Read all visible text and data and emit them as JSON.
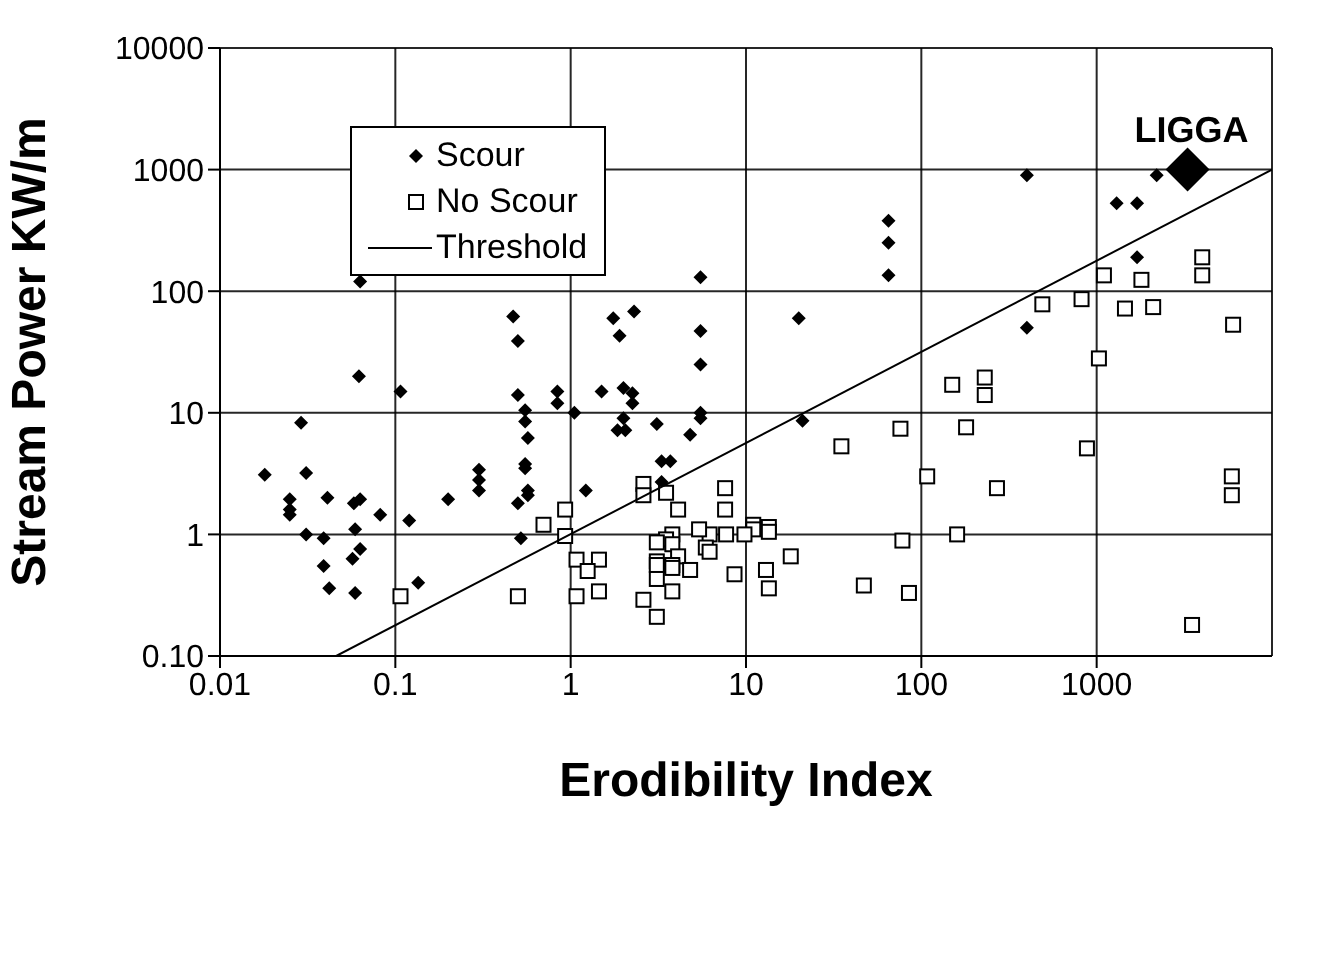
{
  "chart_data": {
    "type": "scatter",
    "xlabel": "Erodibility Index",
    "ylabel": "Stream Power KW/m",
    "log": "xy",
    "grid": true,
    "legend": "top left",
    "xlim": [
      0.01,
      10000
    ],
    "xticks": [
      0.01,
      0.1,
      1,
      10,
      100,
      1000
    ],
    "ylim": [
      0.1,
      10000
    ],
    "yticks": [
      {
        "value": 0.1,
        "label": "0.10"
      },
      1,
      10,
      100,
      1000,
      10000
    ],
    "annotations": [
      {
        "text": "LIGGA",
        "x": 3300,
        "y": 1000
      }
    ],
    "series": [
      {
        "name": "Scour",
        "marker": "diamond",
        "color": "#000000",
        "x": [
          0.063,
          0.47,
          0.5,
          1.75,
          2.3,
          1.9,
          400,
          2200,
          1300,
          1700,
          65,
          65,
          65,
          5.5,
          1700,
          400,
          20,
          5.5,
          0.062,
          0.107,
          0.029,
          0.018,
          0.031,
          0.025,
          0.025,
          0.025,
          0.041,
          0.031,
          0.039,
          0.058,
          0.063,
          0.059,
          0.063,
          0.057,
          0.039,
          0.042,
          0.059,
          0.082,
          0.12,
          0.135,
          0.2,
          0.3,
          0.3,
          0.3,
          0.5,
          0.55,
          0.55,
          0.57,
          0.55,
          0.55,
          0.57,
          0.57,
          0.5,
          0.52,
          0.84,
          0.84,
          1.05,
          1.22,
          1.5,
          2.0,
          2.25,
          2.25,
          2.0,
          1.85,
          2.05,
          3.1,
          4.8,
          5.5,
          5.5,
          5.5,
          3.3,
          3.7,
          3.3,
          21
        ],
        "values": [
          120,
          62,
          39,
          60,
          68,
          43,
          900,
          900,
          530,
          530,
          380,
          250,
          135,
          130,
          190,
          50,
          60,
          47,
          20,
          15,
          8.3,
          3.1,
          3.2,
          1.95,
          1.6,
          1.45,
          2.0,
          1.0,
          0.93,
          1.8,
          1.95,
          1.1,
          0.76,
          0.63,
          0.55,
          0.36,
          0.33,
          1.45,
          1.3,
          0.4,
          1.95,
          2.3,
          2.8,
          3.4,
          14,
          10.5,
          8.5,
          6.2,
          3.8,
          3.5,
          2.3,
          2.1,
          1.8,
          0.93,
          15,
          12,
          10,
          2.3,
          15,
          16,
          14.5,
          12,
          9,
          7.2,
          7.2,
          8.1,
          6.6,
          10,
          9,
          25,
          4,
          4,
          2.7,
          8.6
        ]
      },
      {
        "name": "No Scour",
        "marker": "square",
        "color": "#000000",
        "x": [
          1100,
          1800,
          4000,
          4000,
          490,
          820,
          1450,
          2100,
          6000,
          1030,
          150,
          230,
          230,
          76,
          180,
          880,
          35,
          108,
          270,
          5900,
          5900,
          160,
          78,
          47,
          85,
          3500,
          18,
          13,
          13.5,
          8.6,
          11,
          11,
          13.5,
          13.5,
          9.8,
          7.7,
          7.6,
          7.6,
          6.2,
          5.4,
          3.8,
          4.1,
          3.5,
          2.6,
          2.6,
          3.5,
          3.1,
          3.8,
          5.9,
          6.2,
          4.1,
          3.1,
          3.1,
          3.8,
          3.8,
          4.8,
          3.1,
          3.8,
          2.6,
          3.1,
          0.93,
          0.7,
          0.93,
          0.107,
          0.5,
          1.08,
          1.45,
          1.25,
          1.08,
          1.45
        ],
        "values": [
          135,
          124,
          190,
          135,
          78,
          86,
          72,
          74,
          53,
          28,
          17,
          19.5,
          14,
          7.4,
          7.6,
          5.1,
          5.3,
          3.0,
          2.4,
          3.0,
          2.1,
          1.0,
          0.89,
          0.38,
          0.33,
          0.18,
          0.66,
          0.51,
          0.36,
          0.47,
          1.2,
          1.1,
          1.15,
          1.05,
          1.0,
          1.0,
          2.4,
          1.6,
          1.0,
          1.1,
          1.0,
          1.6,
          2.2,
          2.6,
          2.1,
          0.91,
          0.86,
          0.83,
          0.78,
          0.72,
          0.66,
          0.6,
          0.56,
          0.56,
          0.53,
          0.51,
          0.43,
          0.34,
          0.29,
          0.21,
          1.6,
          1.2,
          0.97,
          0.31,
          0.31,
          0.62,
          0.62,
          0.5,
          0.31,
          0.34
        ]
      },
      {
        "name": "Threshold",
        "type": "line",
        "marker": "none",
        "color": "#000000",
        "x": [
          0.046,
          10000
        ],
        "values": [
          0.1,
          1000
        ]
      },
      {
        "marker": "diamond",
        "color": "#000000",
        "x": [
          3300
        ],
        "values": [
          1000
        ]
      }
    ]
  }
}
